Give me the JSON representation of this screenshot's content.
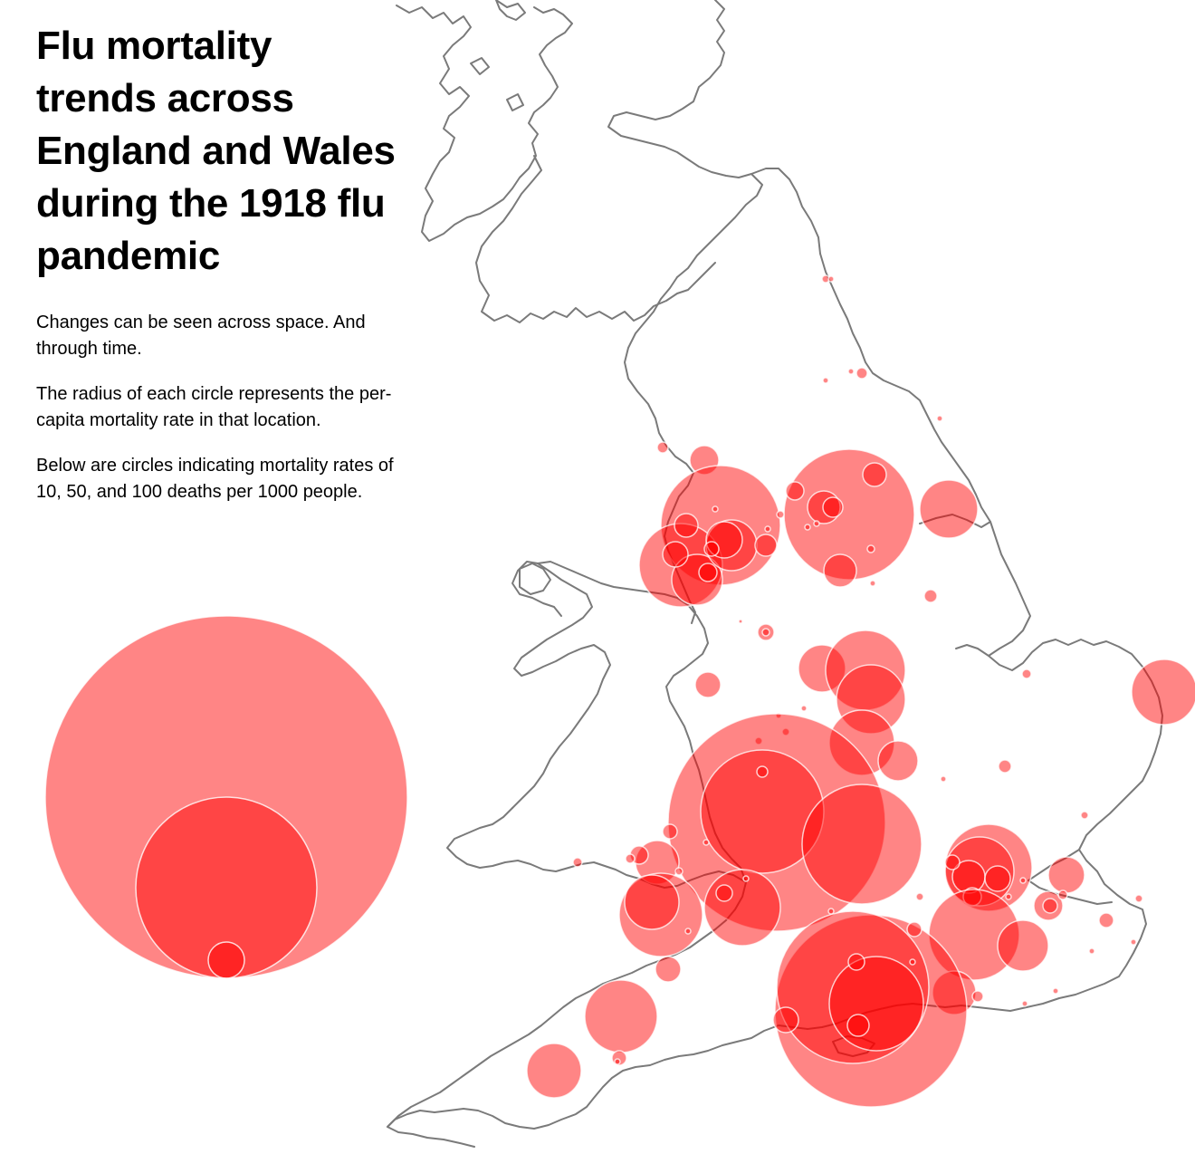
{
  "title": "Flu mortality trends across England and Wales during the 1918 flu pandemic",
  "paragraphs": {
    "space_time": "Changes can be seen across space. And through time.",
    "radius": "The radius of each circle represents the per-capita mortality rate in that location.",
    "legend_intro": "Below are circles indicating mortality rates of 10, 50, and 100 deaths per 1000 people."
  },
  "legend_rates": [
    100,
    50,
    10
  ],
  "colors": {
    "bubble_fill": "#ff0000",
    "coastline": "#7a7a7a",
    "background": "#ffffff"
  }
}
